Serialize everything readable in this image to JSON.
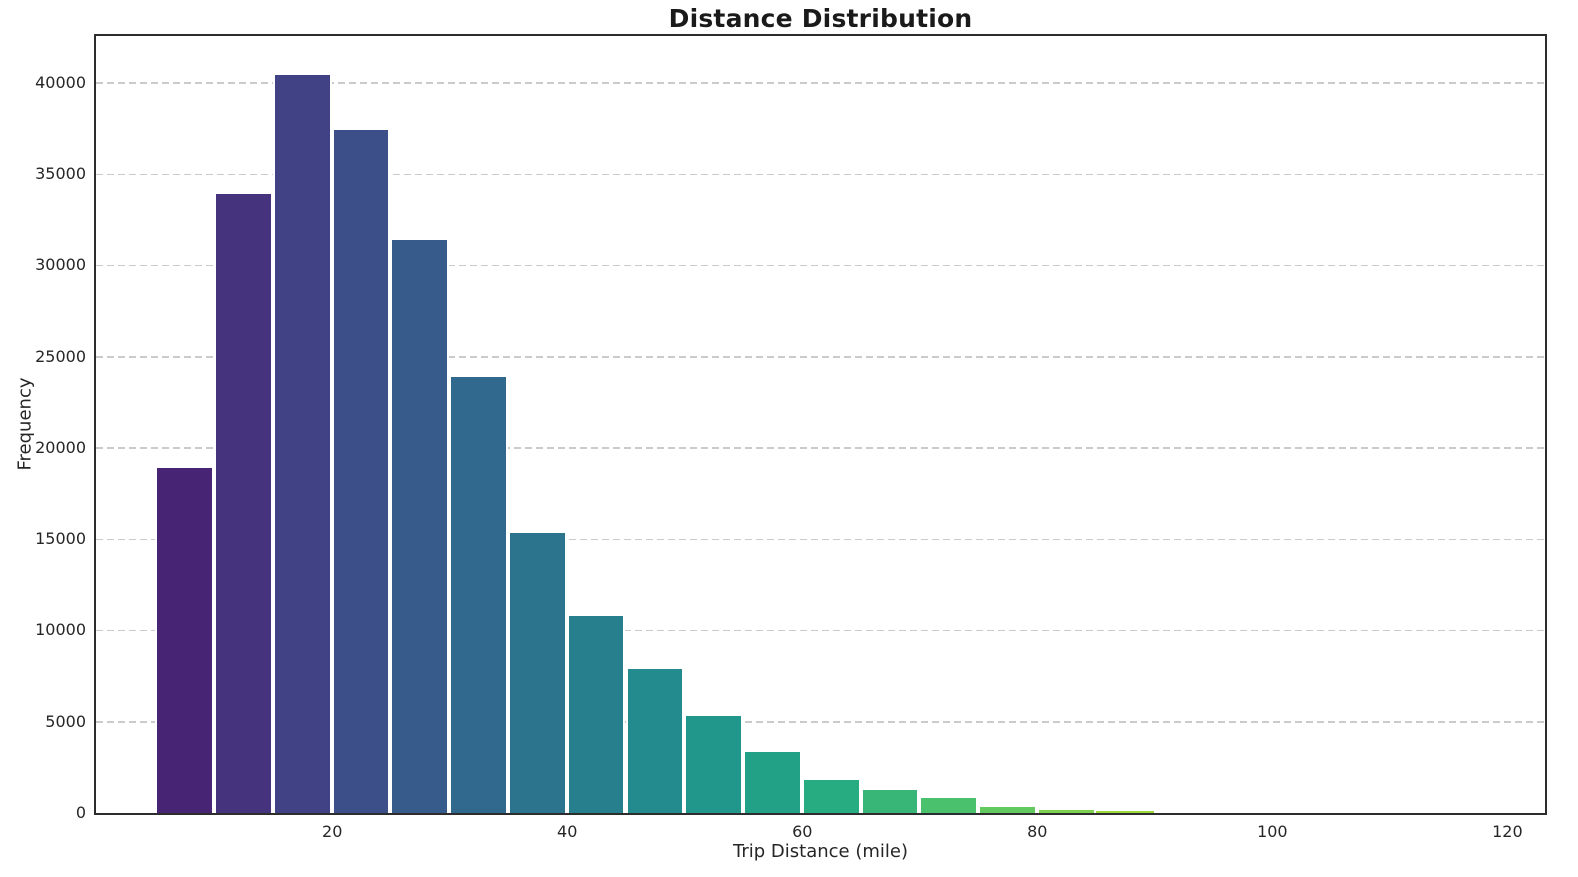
{
  "chart_data": {
    "type": "bar",
    "subtype": "histogram",
    "title": "Distance Distribution",
    "xlabel": "Trip Distance (mile)",
    "ylabel": "Frequency",
    "xlim": [
      -0.1,
      123.2
    ],
    "ylim": [
      0,
      42560
    ],
    "xticks": [
      20,
      40,
      60,
      80,
      100,
      120
    ],
    "yticks": [
      0,
      5000,
      10000,
      15000,
      20000,
      25000,
      30000,
      35000,
      40000
    ],
    "grid": "horizontal-dashed-only",
    "legend": "none",
    "colormap": "viridis",
    "bin_width": 5,
    "bins": [
      {
        "start": 5,
        "end": 10,
        "count": 19000,
        "color": "#482475"
      },
      {
        "start": 10,
        "end": 15,
        "count": 34000,
        "color": "#45337d"
      },
      {
        "start": 15,
        "end": 20,
        "count": 40500,
        "color": "#414286"
      },
      {
        "start": 20,
        "end": 25,
        "count": 37500,
        "color": "#3c4f89"
      },
      {
        "start": 25,
        "end": 30,
        "count": 31450,
        "color": "#375c8c"
      },
      {
        "start": 30,
        "end": 35,
        "count": 23950,
        "color": "#31688d"
      },
      {
        "start": 35,
        "end": 40,
        "count": 15400,
        "color": "#2c738e"
      },
      {
        "start": 40,
        "end": 45,
        "count": 10900,
        "color": "#277f8d"
      },
      {
        "start": 45,
        "end": 50,
        "count": 7950,
        "color": "#238b8d"
      },
      {
        "start": 50,
        "end": 55,
        "count": 5400,
        "color": "#21968a"
      },
      {
        "start": 55,
        "end": 60,
        "count": 3450,
        "color": "#22a186"
      },
      {
        "start": 60,
        "end": 65,
        "count": 1900,
        "color": "#27ac81"
      },
      {
        "start": 65,
        "end": 70,
        "count": 1350,
        "color": "#37b678"
      },
      {
        "start": 70,
        "end": 75,
        "count": 900,
        "color": "#49c16d"
      },
      {
        "start": 75,
        "end": 80,
        "count": 420,
        "color": "#62c95f"
      },
      {
        "start": 80,
        "end": 85,
        "count": 220,
        "color": "#7cd150"
      },
      {
        "start": 85,
        "end": 90,
        "count": 80,
        "color": "#9cd83c"
      }
    ]
  },
  "style": {
    "background": "#ffffff",
    "grid_color": "#cbcbcb",
    "spine_color": "#2d2d2d",
    "text_color": "#262626",
    "title_color": "#1a1a1a"
  }
}
